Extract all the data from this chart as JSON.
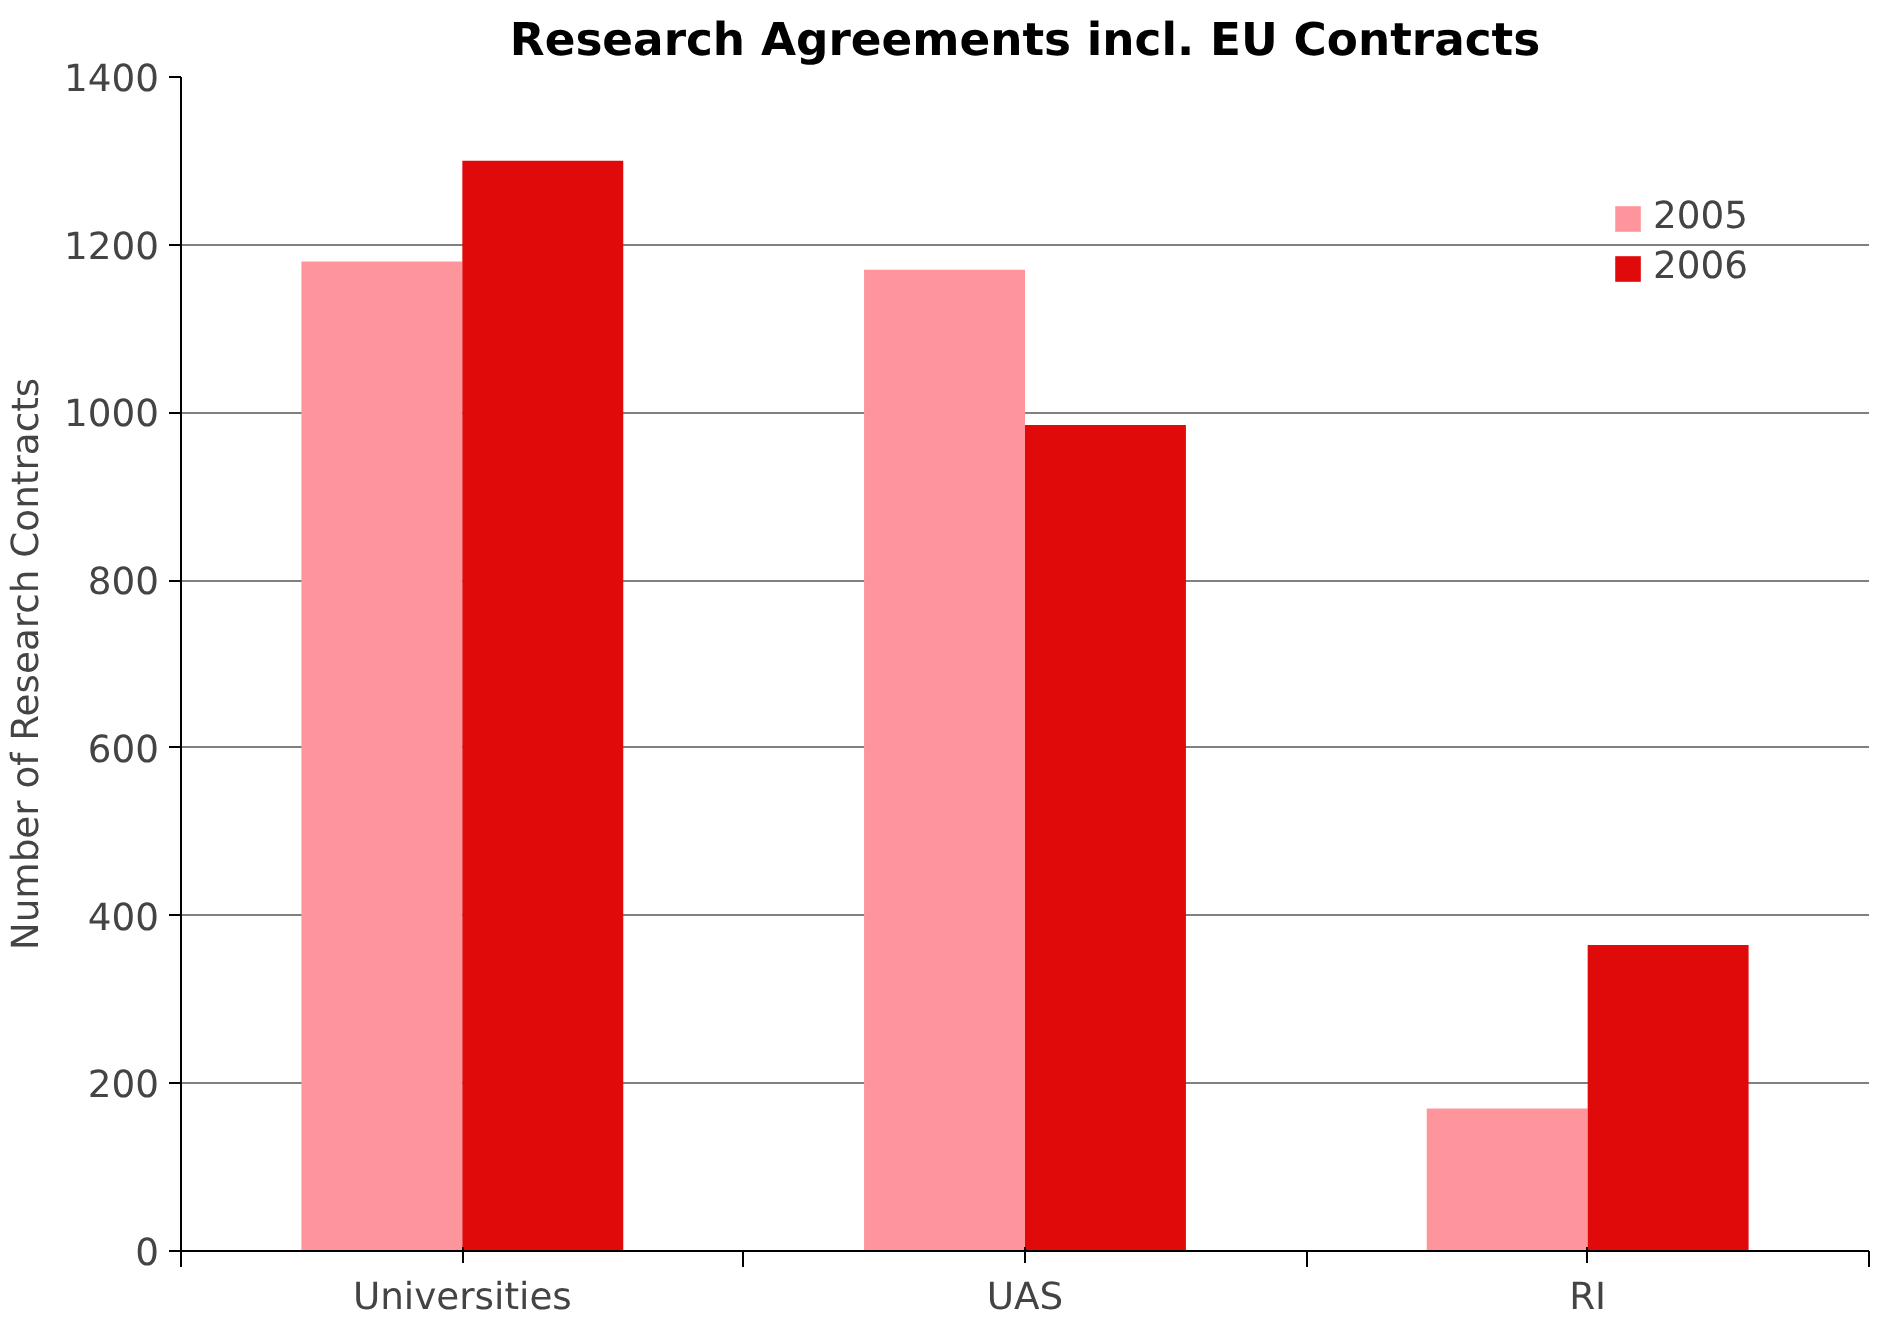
{
  "chart_data": {
    "type": "bar",
    "title": "Research Agreements incl. EU Contracts",
    "ylabel": "Number of Research Contracts",
    "categories": [
      "Universities",
      "UAS",
      "RI"
    ],
    "series": [
      {
        "name": "2005",
        "color": "#fe959c",
        "values": [
          1180,
          1170,
          170
        ]
      },
      {
        "name": "2006",
        "color": "#e00a0a",
        "values": [
          1300,
          985,
          365
        ]
      }
    ],
    "ylim": [
      0,
      1400
    ],
    "yticks": [
      0,
      200,
      400,
      600,
      800,
      1000,
      1200,
      1400
    ],
    "grid": "y",
    "legend": "top right"
  }
}
